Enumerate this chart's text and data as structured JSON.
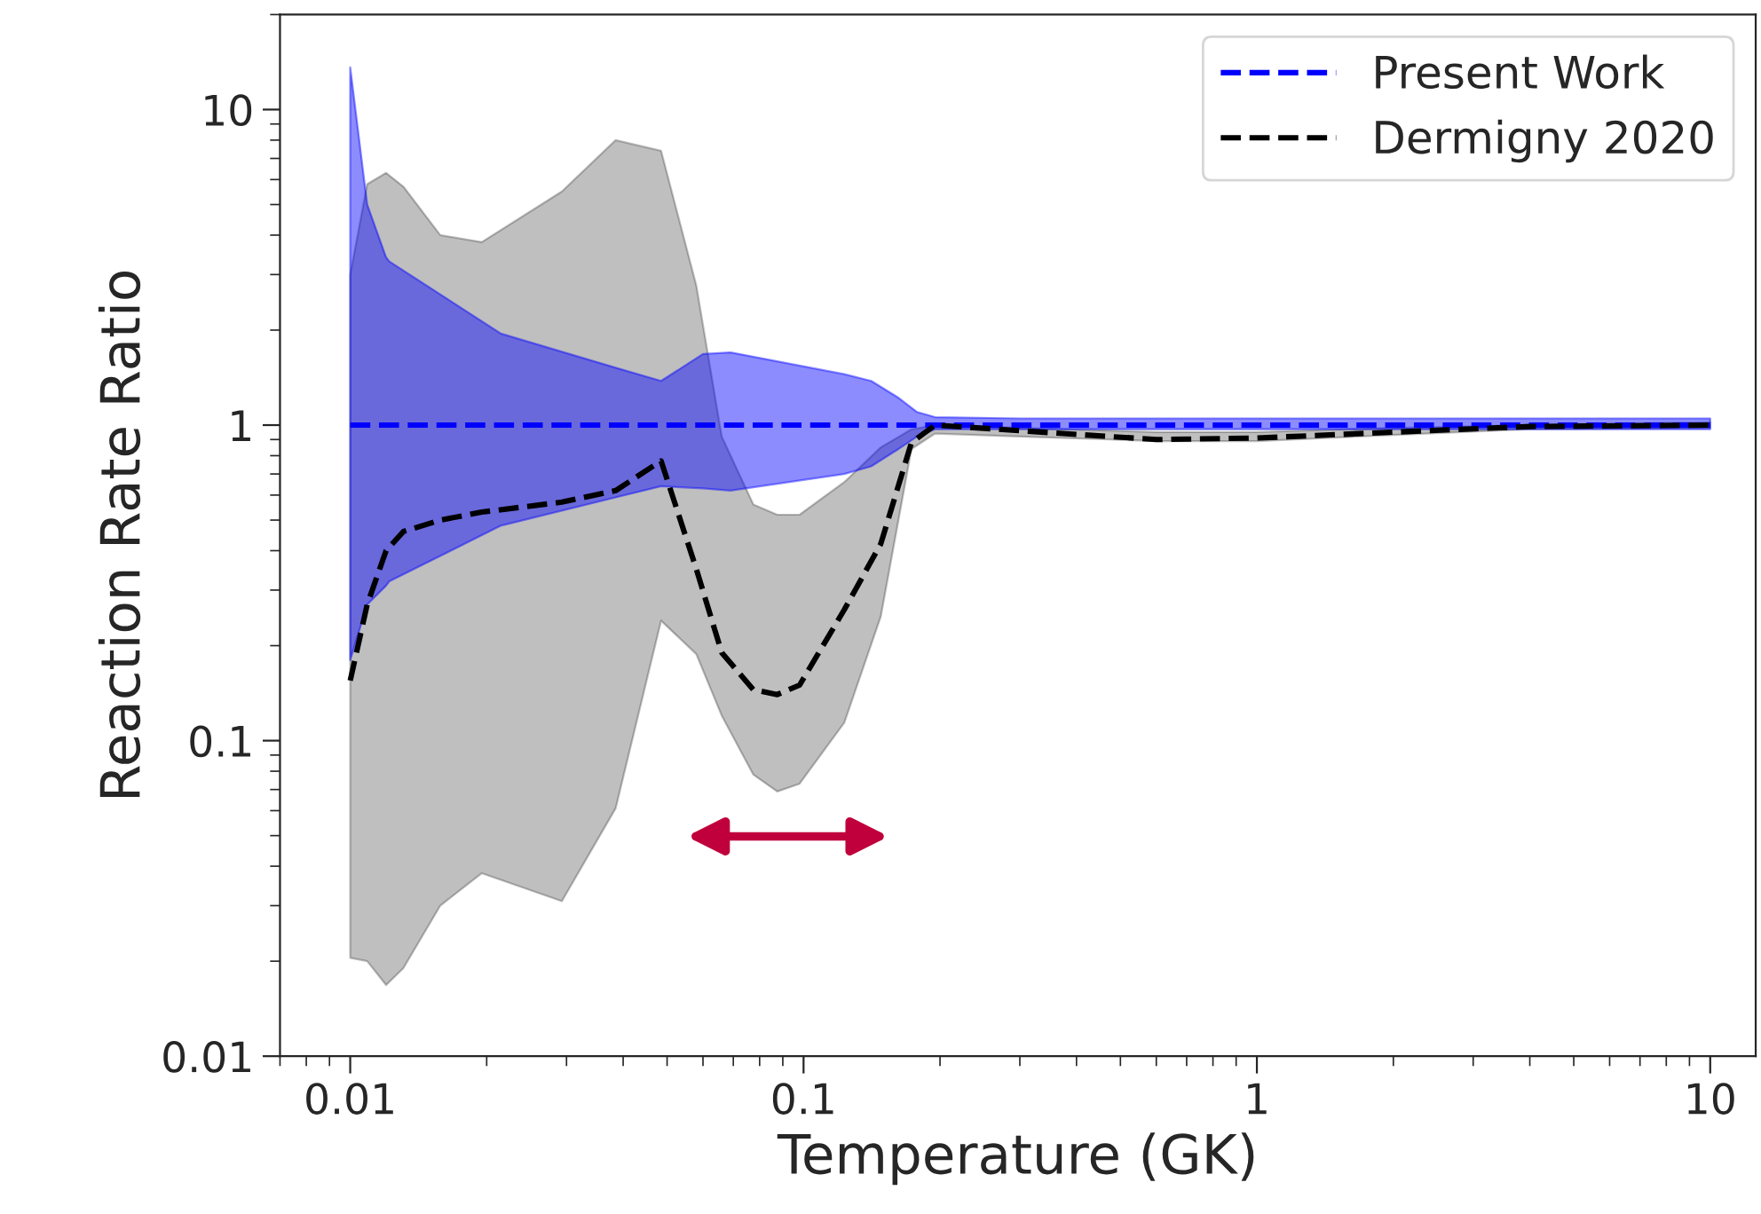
{
  "chart_data": {
    "type": "line",
    "xlabel": "Temperature (GK)",
    "ylabel": "Reaction Rate Ratio",
    "log": "xy",
    "xlim": [
      0.007,
      12.6
    ],
    "ylim": [
      0.01,
      20
    ],
    "xticks": [
      0.01,
      0.1,
      1,
      10
    ],
    "yticks": [
      0.01,
      0.1,
      1,
      10
    ],
    "grid": false,
    "legend": "top right",
    "line_style": "dashed",
    "marker": "none",
    "series": [
      {
        "name": "Present Work",
        "color": "#0000ff",
        "x": [
          0.01,
          0.0109,
          0.012,
          0.0122,
          0.0215,
          0.0385,
          0.0485,
          0.06,
          0.069,
          0.123,
          0.141,
          0.162,
          0.178,
          0.195,
          0.3,
          1,
          10
        ],
        "values": [
          1,
          1,
          1,
          1,
          1,
          1,
          1,
          1,
          1,
          1,
          1,
          1,
          1,
          1,
          1,
          1,
          1
        ],
        "upper": [
          13.6,
          5.0,
          3.4,
          3.3,
          1.95,
          1.52,
          1.38,
          1.68,
          1.7,
          1.45,
          1.38,
          1.22,
          1.1,
          1.06,
          1.05,
          1.05,
          1.05
        ],
        "lower": [
          0.18,
          0.27,
          0.31,
          0.32,
          0.48,
          0.59,
          0.64,
          0.63,
          0.62,
          0.7,
          0.74,
          0.84,
          0.92,
          0.97,
          0.97,
          0.97,
          0.97
        ]
      },
      {
        "name": "Dermigny 2020",
        "color": "#000000",
        "x": [
          0.01,
          0.0109,
          0.012,
          0.0131,
          0.0158,
          0.0195,
          0.0293,
          0.0385,
          0.0485,
          0.058,
          0.066,
          0.0775,
          0.0875,
          0.098,
          0.123,
          0.148,
          0.173,
          0.195,
          0.3,
          0.6,
          1,
          2,
          4,
          10
        ],
        "values": [
          0.155,
          0.27,
          0.4,
          0.46,
          0.5,
          0.53,
          0.57,
          0.62,
          0.77,
          0.35,
          0.19,
          0.145,
          0.14,
          0.15,
          0.26,
          0.42,
          0.88,
          1.0,
          0.96,
          0.9,
          0.91,
          0.95,
          0.99,
          1.0
        ],
        "lower": [
          0.0205,
          0.02,
          0.0168,
          0.019,
          0.03,
          0.038,
          0.031,
          0.061,
          0.24,
          0.188,
          0.12,
          0.078,
          0.069,
          0.073,
          0.114,
          0.247,
          0.84,
          0.94,
          0.92,
          0.89,
          0.89,
          0.93,
          0.97,
          0.98
        ],
        "upper": [
          3.0,
          5.8,
          6.3,
          5.7,
          4.0,
          3.8,
          5.5,
          8.0,
          7.4,
          2.77,
          0.92,
          0.56,
          0.52,
          0.52,
          0.66,
          0.85,
          0.97,
          1.0,
          0.98,
          0.95,
          0.95,
          0.98,
          1.0,
          1.02
        ]
      }
    ]
  }
}
